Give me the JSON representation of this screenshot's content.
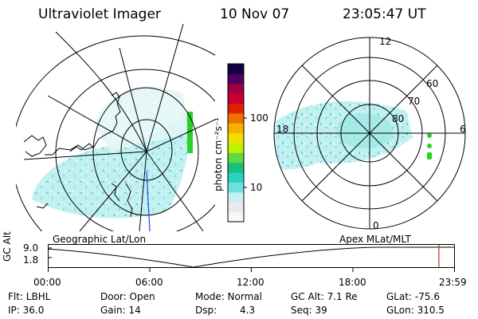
{
  "header": {
    "title": "Ultraviolet Imager",
    "date": "10 Nov 07",
    "time": "23:05:47 UT"
  },
  "colorbar": {
    "unit": "photon cm⁻²s⁻¹",
    "ticks": [
      "100",
      "10"
    ],
    "scale": "log",
    "colors": [
      "#f8f8f8",
      "#eaeaea",
      "#c8f0f4",
      "#6fe0e0",
      "#2fd0c0",
      "#18c080",
      "#60d840",
      "#c0f000",
      "#f0e000",
      "#f8b000",
      "#f07000",
      "#e02000",
      "#c80030",
      "#a00040",
      "#500060",
      "#100040"
    ]
  },
  "geo_panel": {
    "label": "Geographic Lat/Lon",
    "colors": {
      "coast": "#000000",
      "aurora": "#b4ecee",
      "aurora_dense": "#3fd8c8",
      "bright_edge": "#20d020",
      "meridian": "#2040ff"
    }
  },
  "polar_panel": {
    "label": "Apex MLat/MLT",
    "mlt_labels": [
      "12",
      "18",
      "6",
      "0"
    ],
    "mlat_labels": [
      "60",
      "70",
      "80"
    ]
  },
  "timeline": {
    "y_label": "GC Alt",
    "y_ticks": [
      "9.0",
      "1.8"
    ],
    "x_ticks": [
      "00:00",
      "06:00",
      "12:00",
      "18:00",
      "23:59"
    ],
    "marker_color": "#e02020",
    "marker_time_hours": 23.1,
    "trace_color": "#000000"
  },
  "info": {
    "flt": "Flt: LBHL",
    "ip": "IP: 36.0",
    "door": "Door: Open",
    "gain": "Gain: 14",
    "mode": "Mode: Normal",
    "dsp_label": "Dsp:",
    "dsp_value": "4.3",
    "gcalt": "GC Alt: 7.1 Re",
    "seq": "Seq: 39",
    "glat": "GLat: -75.6",
    "glon": "GLon: 310.5"
  }
}
